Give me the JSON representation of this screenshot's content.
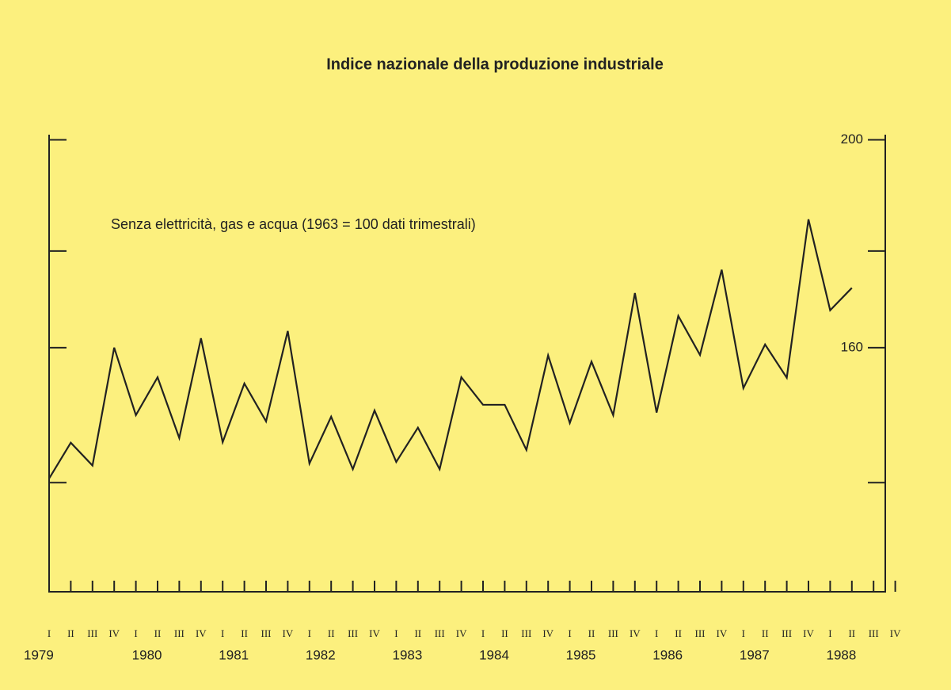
{
  "chart_data": {
    "type": "line",
    "title": "Indice nazionale della produzione industriale",
    "subtitle": "Senza elettricità, gas e acqua (1963 = 100 dati trimestrali)",
    "categories": [
      "I",
      "II",
      "III",
      "IV",
      "I",
      "II",
      "III",
      "IV",
      "I",
      "II",
      "III",
      "IV",
      "I",
      "II",
      "III",
      "IV",
      "I",
      "II",
      "III",
      "IV",
      "I",
      "II",
      "III",
      "IV",
      "I",
      "II",
      "III",
      "IV",
      "I",
      "II",
      "III",
      "IV",
      "I",
      "II",
      "III",
      "IV",
      "I",
      "II",
      "III",
      "IV"
    ],
    "year_labels": [
      "1979",
      "1980",
      "1981",
      "1982",
      "1983",
      "1984",
      "1985",
      "1986",
      "1987",
      "1988"
    ],
    "series": [
      {
        "color": "#222222",
        "values": [
          134.8,
          141.7,
          137.3,
          160,
          147,
          154.3,
          142.6,
          161.8,
          141.8,
          153.1,
          145.8,
          163.2,
          137.7,
          146.7,
          136.6,
          147.9,
          138,
          144.6,
          136.6,
          154.3,
          149,
          149,
          140.3,
          158.5,
          145.5,
          157.3,
          147,
          170.5,
          147.5,
          166.1,
          158.6,
          175,
          152.2,
          160.6,
          154.2,
          184.7,
          167.2,
          171.5,
          null,
          null
        ]
      }
    ],
    "ylim": [
      113,
      201
    ],
    "yticks": [
      160,
      200
    ],
    "yminorticks": [
      134,
      178.6
    ],
    "y_axis_side": "right"
  }
}
